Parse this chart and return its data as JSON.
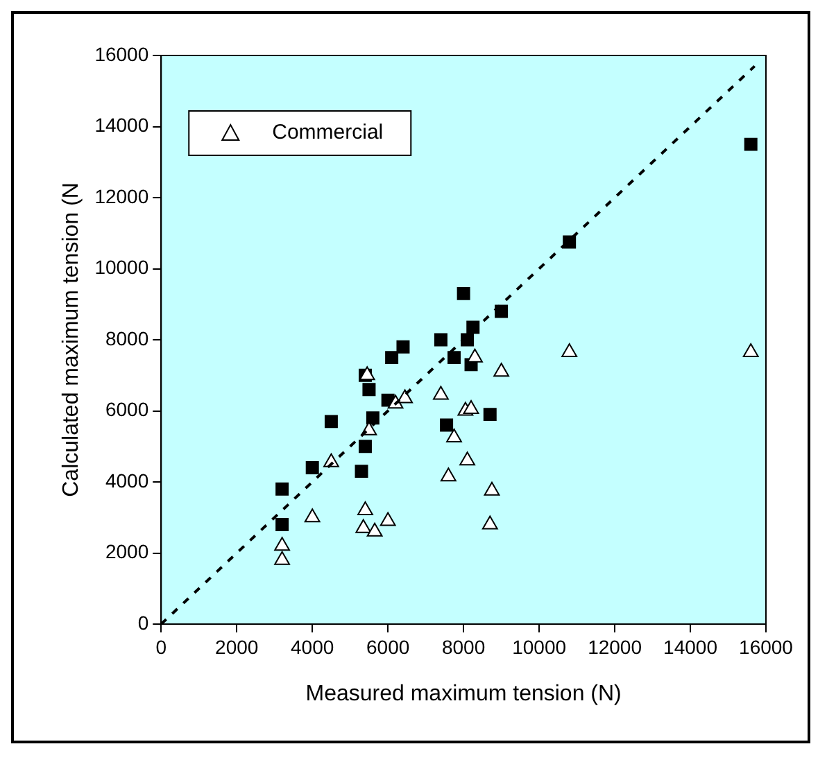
{
  "chart_data": {
    "type": "scatter",
    "xlabel": "Measured maximum tension (N)",
    "ylabel": "Calculated maximum tension (N",
    "xlim": [
      0,
      16000
    ],
    "ylim": [
      0,
      16000
    ],
    "xticks": [
      0,
      2000,
      4000,
      6000,
      8000,
      10000,
      12000,
      14000,
      16000
    ],
    "yticks": [
      0,
      2000,
      4000,
      6000,
      8000,
      10000,
      12000,
      14000,
      16000
    ],
    "grid": false,
    "legend": "top left",
    "series": [
      {
        "color": "#000000",
        "marker": "square",
        "x": [
          3200,
          3200,
          4000,
          4500,
          5300,
          5400,
          5400,
          5500,
          5600,
          6000,
          6100,
          6400,
          7400,
          7550,
          7750,
          8000,
          8100,
          8200,
          8250,
          8700,
          9000,
          10800,
          15600
        ],
        "values": [
          2800,
          3800,
          4400,
          5700,
          4300,
          5000,
          7000,
          6600,
          5800,
          6300,
          7500,
          7800,
          8000,
          5600,
          7500,
          9300,
          8000,
          7300,
          8350,
          5900,
          8800,
          10750,
          13500
        ]
      },
      {
        "name": "Commercial",
        "color": "#ffffff",
        "marker": "triangle",
        "x": [
          3200,
          3200,
          4000,
          4500,
          5450,
          5500,
          5400,
          5350,
          5650,
          6000,
          6200,
          6450,
          8300,
          7400,
          9000,
          8050,
          8200,
          7750,
          8100,
          7600,
          8750,
          8700,
          10800,
          15600
        ],
        "values": [
          1800,
          2200,
          3000,
          4550,
          7000,
          5450,
          3200,
          2700,
          2600,
          2900,
          6200,
          6350,
          7500,
          6450,
          7100,
          6000,
          6050,
          5250,
          4600,
          4150,
          3750,
          2800,
          7650,
          7650
        ]
      },
      {
        "type": "line",
        "color": "#000000",
        "line_style": "dashed",
        "marker": "none",
        "x": [
          0,
          15700
        ],
        "values": [
          0,
          15700
        ]
      }
    ]
  }
}
